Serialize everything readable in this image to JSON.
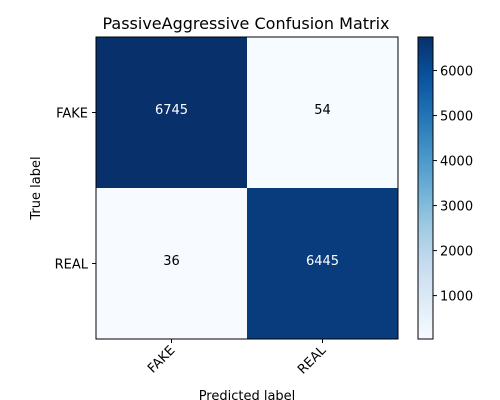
{
  "chart_data": {
    "type": "heatmap",
    "title": "PassiveAggressive Confusion Matrix",
    "xlabel": "Predicted label",
    "ylabel": "True label",
    "x_categories": [
      "FAKE",
      "REAL"
    ],
    "y_categories": [
      "FAKE",
      "REAL"
    ],
    "values": [
      [
        6745,
        54
      ],
      [
        36,
        6445
      ]
    ],
    "colormap": "Blues",
    "colorbar": {
      "min": 36,
      "max": 6745,
      "ticks": [
        1000,
        2000,
        3000,
        4000,
        5000,
        6000
      ],
      "tick_labels": [
        "1000",
        "2000",
        "3000",
        "4000",
        "5000",
        "6000"
      ]
    },
    "grid": false,
    "colors": {
      "low": "#f7fbff",
      "high": "#08306b",
      "text_on_dark": "#ffffff",
      "text_on_light": "#000000"
    }
  }
}
